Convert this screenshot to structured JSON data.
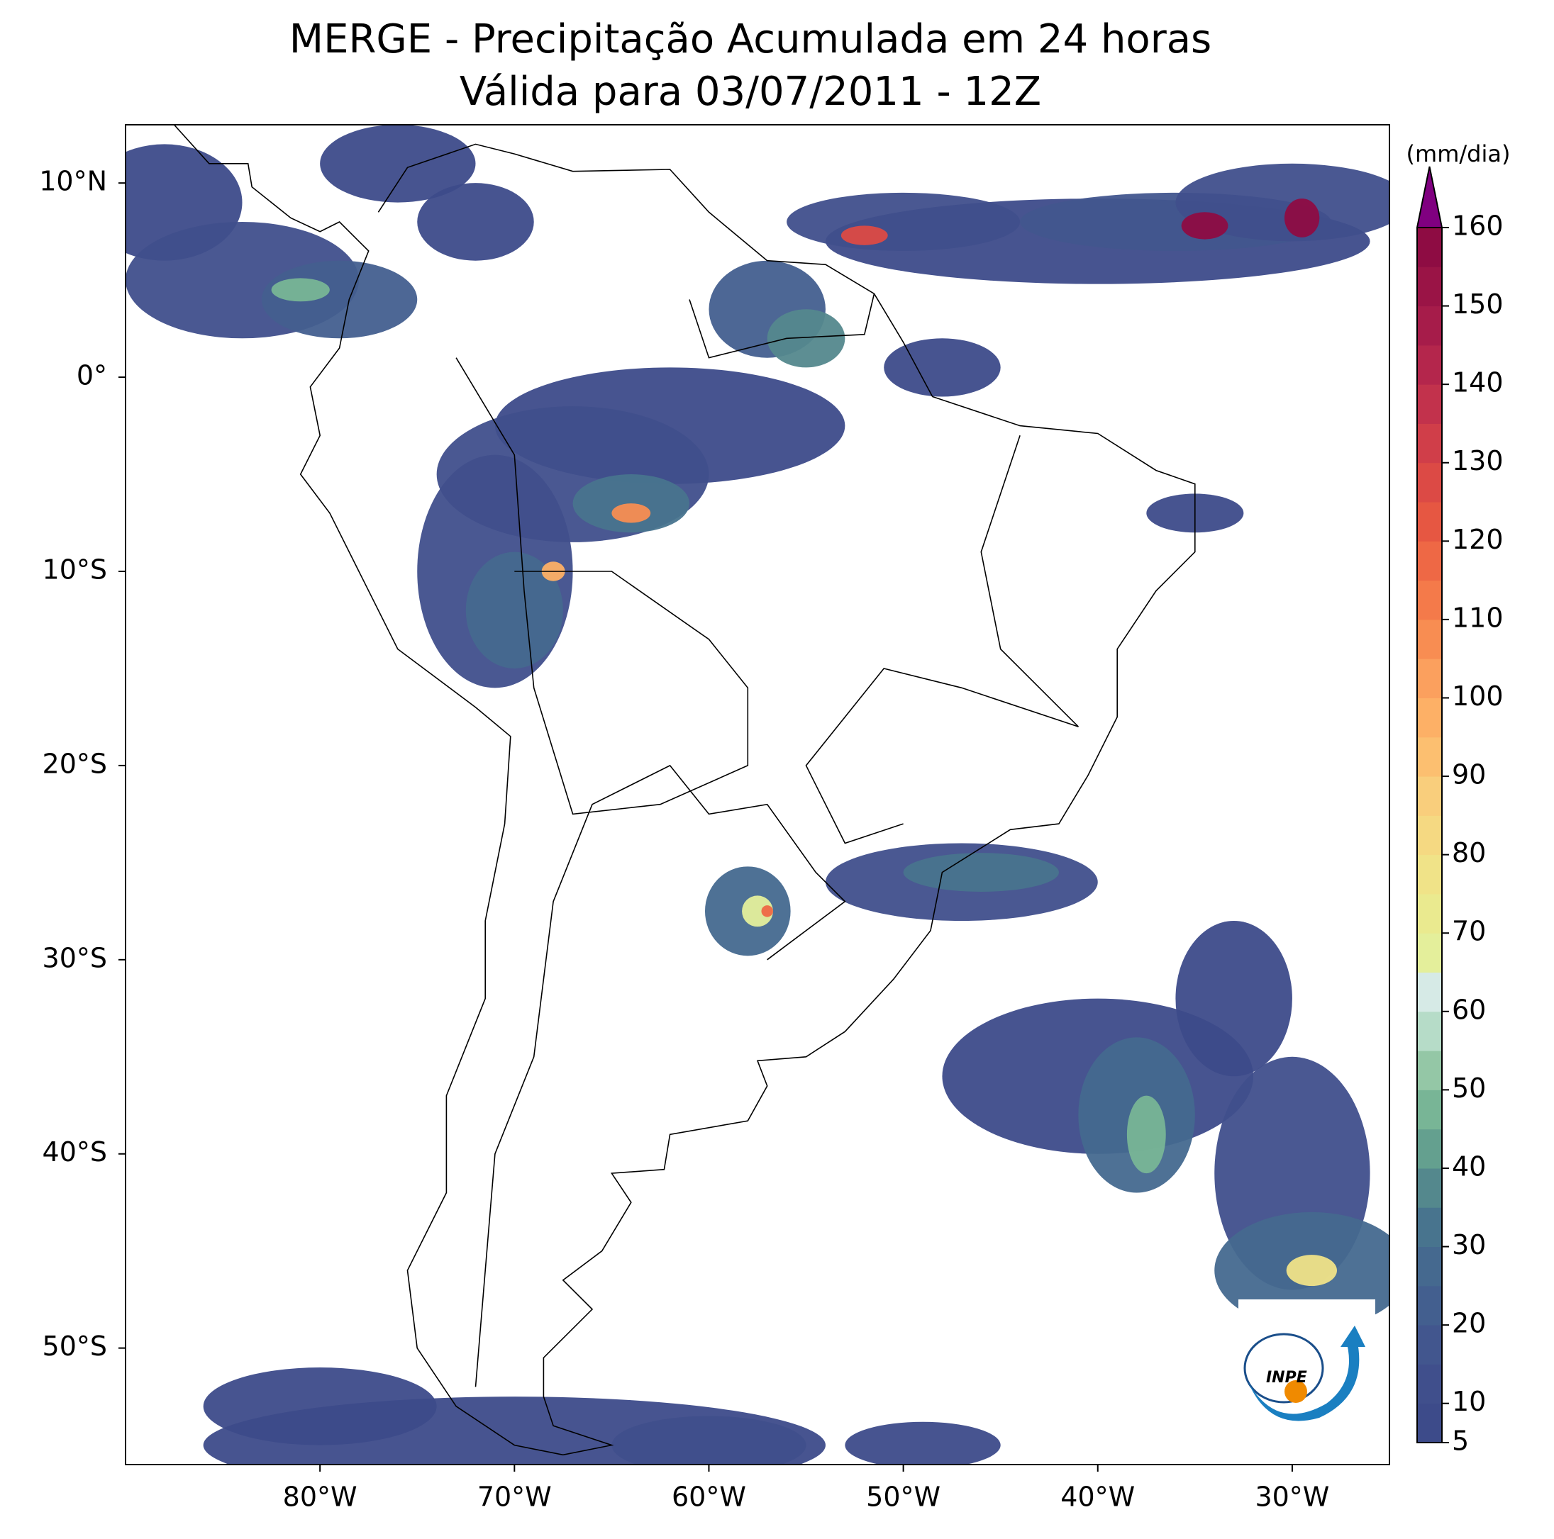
{
  "chart_data": {
    "type": "map",
    "title": "MERGE - Precipitação Acumulada em 24 horas",
    "subtitle": "Válida para 03/07/2011 - 12Z",
    "xlim": [
      -90,
      -25
    ],
    "ylim": [
      -56,
      13
    ],
    "xticks": [
      {
        "value": -80,
        "label": "80°W"
      },
      {
        "value": -70,
        "label": "70°W"
      },
      {
        "value": -60,
        "label": "60°W"
      },
      {
        "value": -50,
        "label": "50°W"
      },
      {
        "value": -40,
        "label": "40°W"
      },
      {
        "value": -30,
        "label": "30°W"
      }
    ],
    "yticks": [
      {
        "value": 10,
        "label": "10°N"
      },
      {
        "value": 0,
        "label": "0°"
      },
      {
        "value": -10,
        "label": "10°S"
      },
      {
        "value": -20,
        "label": "20°S"
      },
      {
        "value": -30,
        "label": "30°S"
      },
      {
        "value": -40,
        "label": "40°S"
      },
      {
        "value": -50,
        "label": "50°S"
      }
    ],
    "colorbar": {
      "label": "(mm/dia)",
      "lim": [
        5,
        160
      ],
      "ticks": [
        5,
        10,
        20,
        30,
        40,
        50,
        60,
        70,
        80,
        90,
        100,
        110,
        120,
        130,
        140,
        150,
        160
      ],
      "levels": [
        5,
        10,
        15,
        20,
        25,
        30,
        35,
        40,
        45,
        50,
        55,
        60,
        65,
        70,
        75,
        80,
        85,
        90,
        95,
        100,
        105,
        110,
        115,
        120,
        125,
        130,
        135,
        140,
        145,
        150,
        155,
        160
      ],
      "colors": [
        "#3d4b8a",
        "#404f8c",
        "#42568e",
        "#435f8f",
        "#45698f",
        "#48748e",
        "#54888d",
        "#64a08f",
        "#78b596",
        "#94c7a6",
        "#b6dcc8",
        "#d6eae6",
        "#e4ef9b",
        "#eaea8f",
        "#f0e388",
        "#f5d982",
        "#f9ce7c",
        "#fcbf70",
        "#fdb066",
        "#fba05e",
        "#f88d52",
        "#f47a4a",
        "#ee6845",
        "#e65742",
        "#dc4a45",
        "#d03e49",
        "#c2324c",
        "#b4264c",
        "#a61c4a",
        "#9a1446",
        "#8e0c43"
      ],
      "extend_color": "#800080"
    }
  },
  "logo": {
    "text": "INPE"
  }
}
